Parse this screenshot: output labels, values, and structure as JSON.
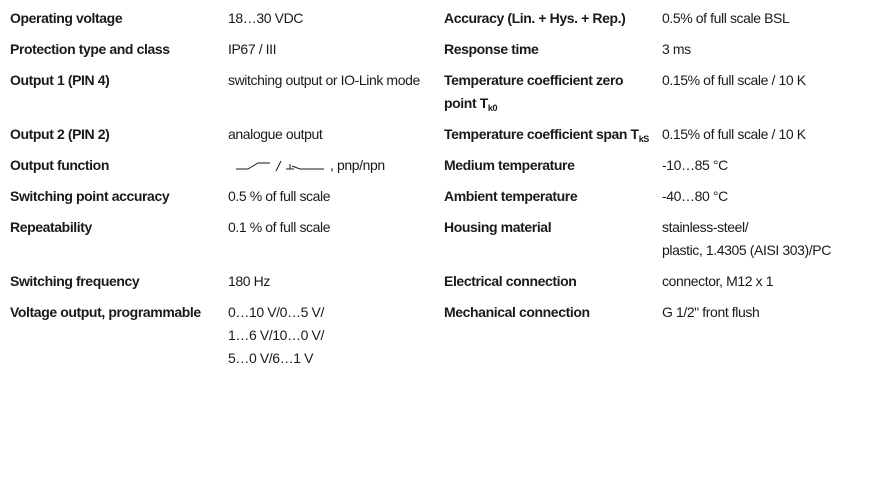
{
  "rows": [
    {
      "left": {
        "label": "Operating voltage",
        "value": [
          "18…30 VDC"
        ]
      },
      "right": {
        "label": "Accuracy (Lin. + Hys. + Rep.)",
        "value": [
          "0.5% of full scale BSL"
        ]
      }
    },
    {
      "left": {
        "label": "Protection type and class",
        "value": [
          "IP67 / III"
        ]
      },
      "right": {
        "label": "Response time",
        "value": [
          "3 ms"
        ]
      }
    },
    {
      "left": {
        "label": "Output 1 (PIN 4)",
        "value": [
          "switching output or IO-Link mode"
        ]
      },
      "right": {
        "label": "Temperature coefficient zero point T",
        "label_sub": "k0",
        "value": [
          "0.15% of full scale / 10 K"
        ]
      }
    },
    {
      "left": {
        "label": "Output 2 (PIN 2)",
        "value": [
          "analogue output"
        ]
      },
      "right": {
        "label": "Temperature coefficient span T",
        "label_sub": "kS",
        "value": [
          "0.15% of full scale / 10 K"
        ]
      }
    },
    {
      "left": {
        "label": "Output function",
        "value": [
          ", pnp/npn"
        ]
      },
      "right": {
        "label": "Medium temperature",
        "value": [
          "-10…85 °C"
        ]
      }
    },
    {
      "left": {
        "label": "Switching point accuracy",
        "value": [
          "0.5 % of full scale"
        ]
      },
      "right": {
        "label": "Ambient temperature",
        "value": [
          "-40…80 °C"
        ]
      }
    },
    {
      "left": {
        "label": "Repeatability",
        "value": [
          "0.1 % of full scale"
        ]
      },
      "right": {
        "label": "Housing material",
        "value": [
          "stainless-steel/",
          "plastic, 1.4305 (AISI 303)/PC"
        ]
      }
    },
    {
      "left": {
        "label": "Switching frequency",
        "value": [
          "180 Hz"
        ]
      },
      "right": {
        "label": "Electrical connection",
        "value": [
          "connector, M12 x 1"
        ]
      }
    },
    {
      "left": {
        "label": "Voltage output, programmable",
        "value": [
          "0…10 V/0…5 V/",
          "1…6 V/10…0 V/",
          "5…0 V/6…1 V"
        ]
      },
      "right": {
        "label": "Mechanical connection",
        "value": [
          "G 1/2\" front flush"
        ]
      }
    }
  ]
}
